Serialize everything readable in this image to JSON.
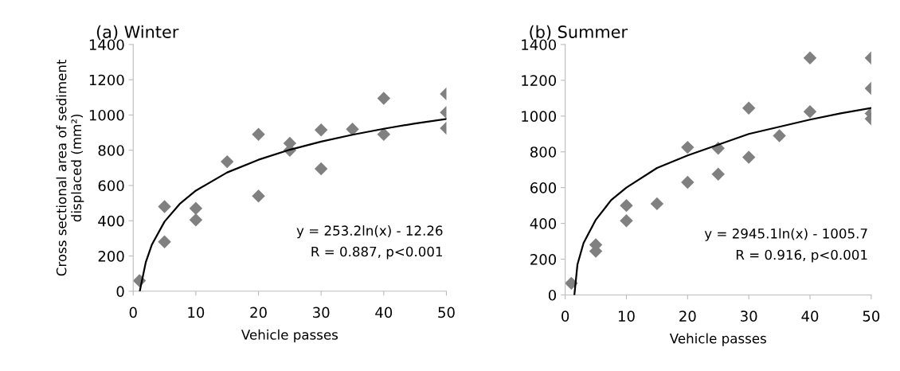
{
  "chart_data": [
    {
      "type": "scatter",
      "title": "(a) Winter",
      "xlabel": "Vehicle passes",
      "ylabel": "Cross sectional area of sediment\ndisplaced (mm²)",
      "xlim": [
        0,
        50
      ],
      "ylim": [
        0,
        1400
      ],
      "xticks": [
        0,
        10,
        20,
        30,
        40,
        50
      ],
      "yticks": [
        0,
        200,
        400,
        600,
        800,
        1000,
        1200,
        1400
      ],
      "grid": false,
      "annotations": [
        "y = 253.2ln(x) - 12.26",
        "R = 0.887, p<0.001"
      ],
      "series": [
        {
          "marker": "diamond",
          "color": "#808080",
          "x": [
            1,
            5,
            5,
            10,
            10,
            15,
            20,
            20,
            25,
            25,
            30,
            30,
            35,
            40,
            40,
            50,
            50,
            50
          ],
          "values": [
            60,
            480,
            280,
            470,
            405,
            735,
            890,
            540,
            840,
            800,
            915,
            695,
            920,
            1095,
            890,
            1120,
            1015,
            925
          ]
        },
        {
          "type": "line",
          "color": "#000000",
          "line_style": "solid",
          "x": [
            1.05,
            2,
            3,
            5,
            7.5,
            10,
            15,
            20,
            25,
            30,
            35,
            40,
            45,
            50
          ],
          "values": [
            0,
            163,
            266,
            395,
            498,
            571,
            674,
            746,
            803,
            849,
            888,
            922,
            952,
            978
          ]
        }
      ]
    },
    {
      "type": "scatter",
      "title": "(b) Summer",
      "xlabel": "Vehicle passes",
      "xlim": [
        0,
        50
      ],
      "ylim": [
        0,
        1400
      ],
      "xticks": [
        0,
        10,
        20,
        30,
        40,
        50
      ],
      "yticks": [
        0,
        200,
        400,
        600,
        800,
        1000,
        1200,
        1400
      ],
      "grid": false,
      "annotations": [
        "y = 2945.1ln(x) - 1005.7",
        "R = 0.916, p<0.001"
      ],
      "series": [
        {
          "marker": "diamond",
          "color": "#808080",
          "x": [
            1,
            5,
            5,
            10,
            10,
            15,
            20,
            20,
            25,
            25,
            30,
            30,
            35,
            40,
            40,
            50,
            50,
            50,
            50
          ],
          "values": [
            65,
            280,
            245,
            500,
            415,
            510,
            825,
            630,
            820,
            675,
            1045,
            770,
            890,
            1325,
            1025,
            1325,
            1155,
            1015,
            985
          ]
        },
        {
          "type": "line",
          "color": "#000000",
          "line_style": "solid",
          "x": [
            1.5,
            2,
            3,
            5,
            7.5,
            10,
            15,
            20,
            25,
            30,
            35,
            40,
            45,
            50
          ],
          "values": [
            0,
            170,
            290,
            420,
            530,
            600,
            710,
            780,
            840,
            900,
            940,
            980,
            1015,
            1045
          ]
        }
      ]
    }
  ]
}
